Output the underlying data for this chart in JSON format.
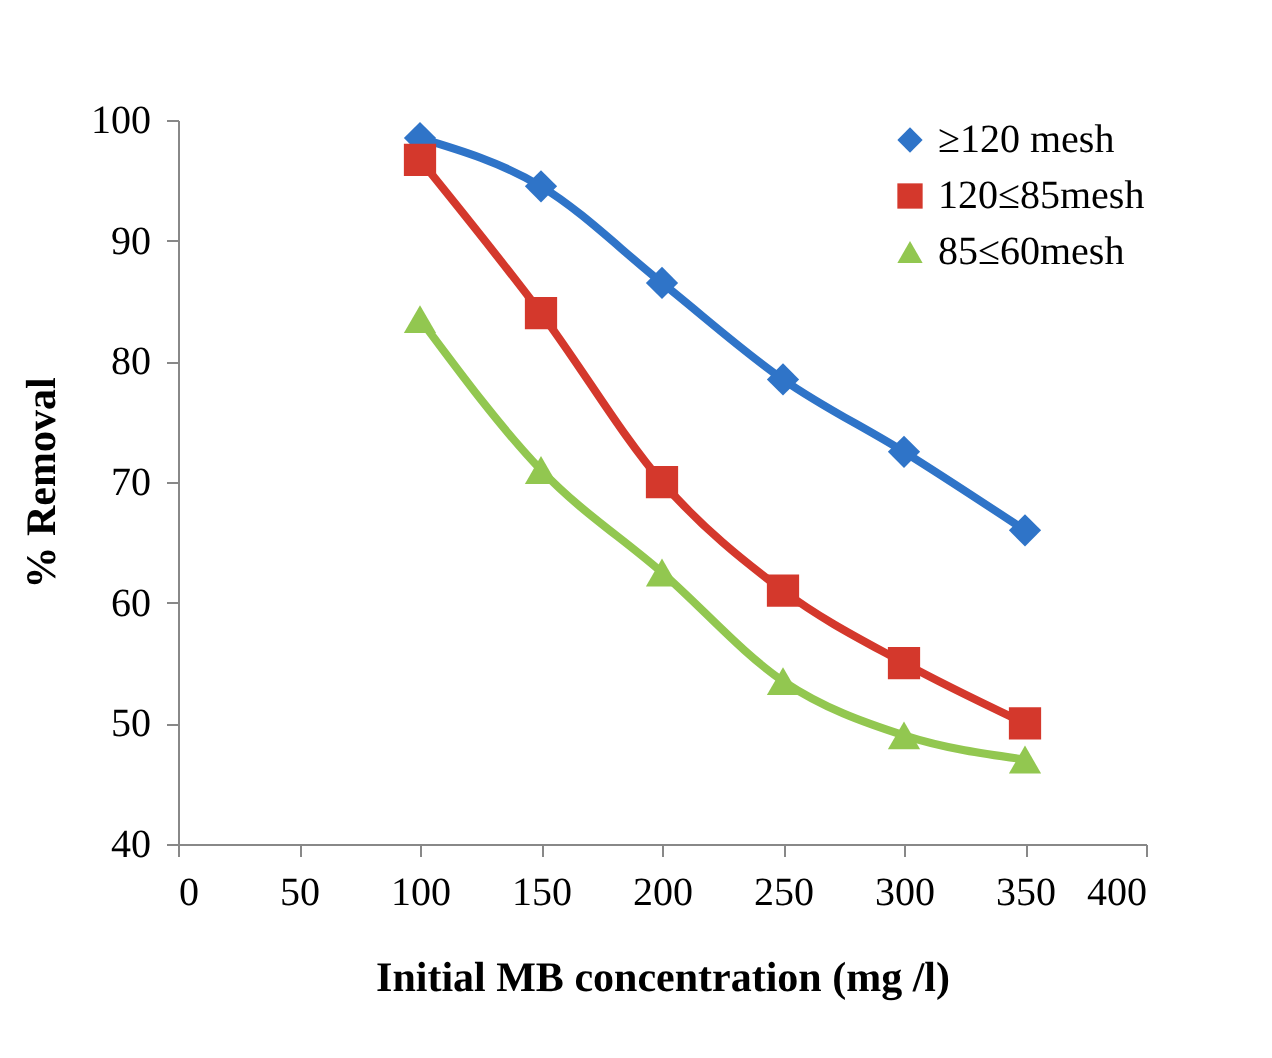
{
  "chart_data": {
    "type": "line",
    "xlabel": "Initial MB concentration (mg /l)",
    "ylabel": "% Removal",
    "x": [
      100,
      150,
      200,
      250,
      300,
      350
    ],
    "series": [
      {
        "name": "≥120 mesh",
        "color": "#2f74c8",
        "marker": "diamond",
        "values": [
          98.5,
          94.5,
          86.5,
          78.5,
          72.5,
          66
        ]
      },
      {
        "name": "120≤85mesh",
        "color": "#d4382c",
        "marker": "square",
        "values": [
          96.7,
          84,
          70,
          61,
          55,
          50
        ]
      },
      {
        "name": "85≤60mesh",
        "color": "#92c750",
        "marker": "triangle",
        "values": [
          83.5,
          71,
          62.5,
          53.5,
          49,
          47
        ]
      }
    ],
    "xlim": [
      0,
      400
    ],
    "xticks": [
      0,
      50,
      100,
      150,
      200,
      250,
      300,
      350,
      400
    ],
    "ylim": [
      40,
      100
    ],
    "yticks": [
      40,
      50,
      60,
      70,
      80,
      90,
      100
    ],
    "grid": false,
    "legend": "top right",
    "line_style": "solid"
  }
}
